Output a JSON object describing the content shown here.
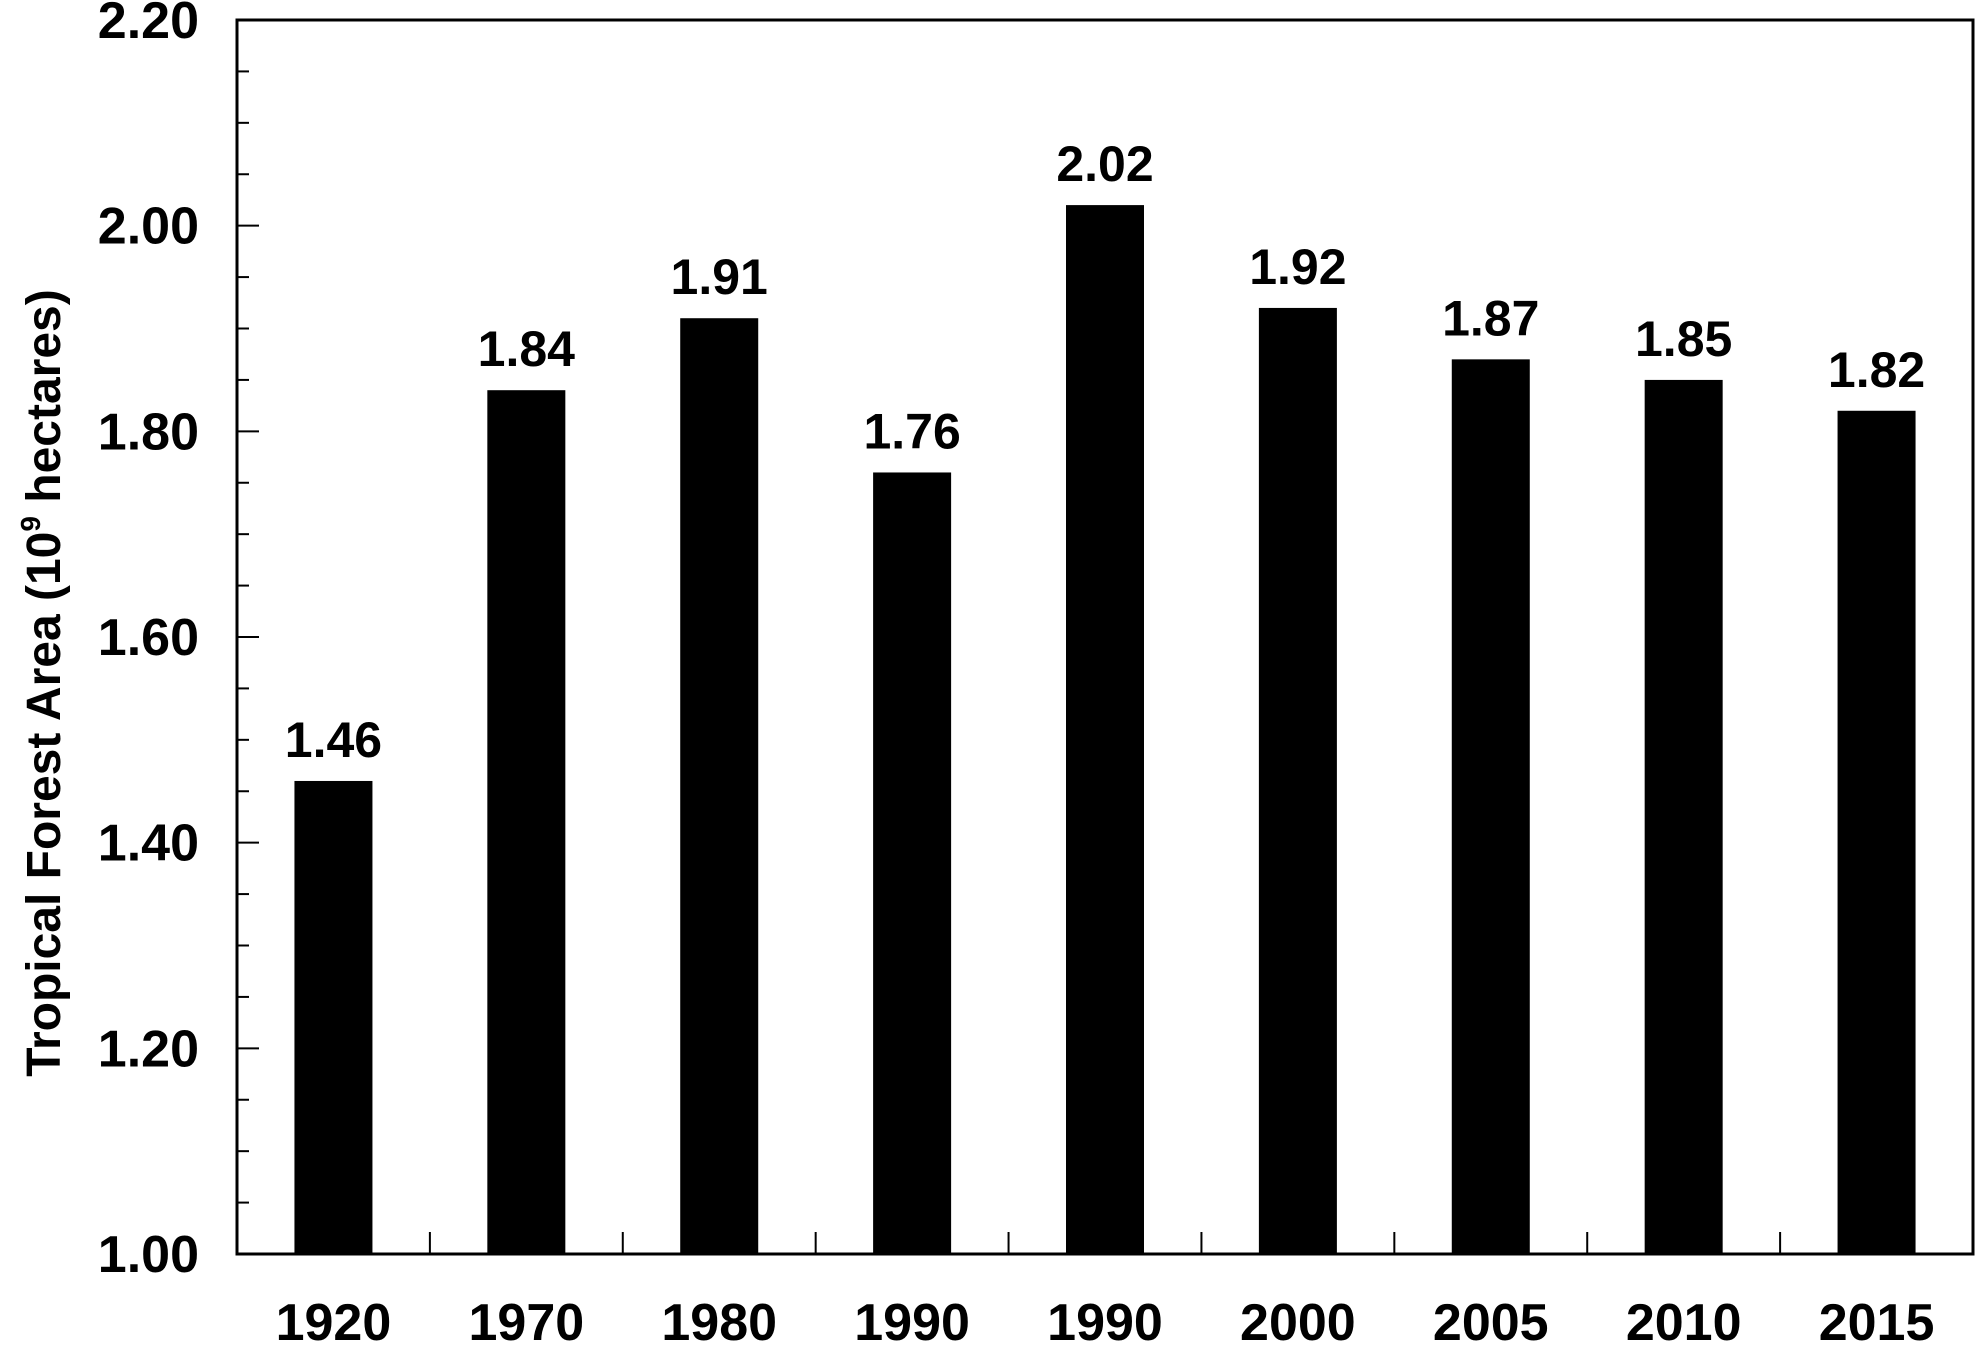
{
  "chart_data": {
    "type": "bar",
    "title": "",
    "xlabel": "",
    "ylabel": "Tropical Forest Area (10",
    "ylabel_exponent": "9",
    "ylabel_unit": " hectares)",
    "ylim": [
      1.0,
      2.2
    ],
    "y_ticks": [
      "1.00",
      "1.20",
      "1.40",
      "1.60",
      "1.80",
      "2.00",
      "2.20"
    ],
    "y_tick_values": [
      1.0,
      1.2,
      1.4,
      1.6,
      1.8,
      2.0,
      2.2
    ],
    "categories": [
      "1920",
      "1970",
      "1980",
      "1990",
      "1990",
      "2000",
      "2005",
      "2010",
      "2015"
    ],
    "values": [
      1.46,
      1.84,
      1.91,
      1.76,
      2.02,
      1.92,
      1.87,
      1.85,
      1.82
    ],
    "value_labels": [
      "1.46",
      "1.84",
      "1.91",
      "1.76",
      "2.02",
      "1.92",
      "1.87",
      "1.85",
      "1.82"
    ],
    "bar_color": "#000000",
    "grid": false,
    "legend": "none"
  }
}
